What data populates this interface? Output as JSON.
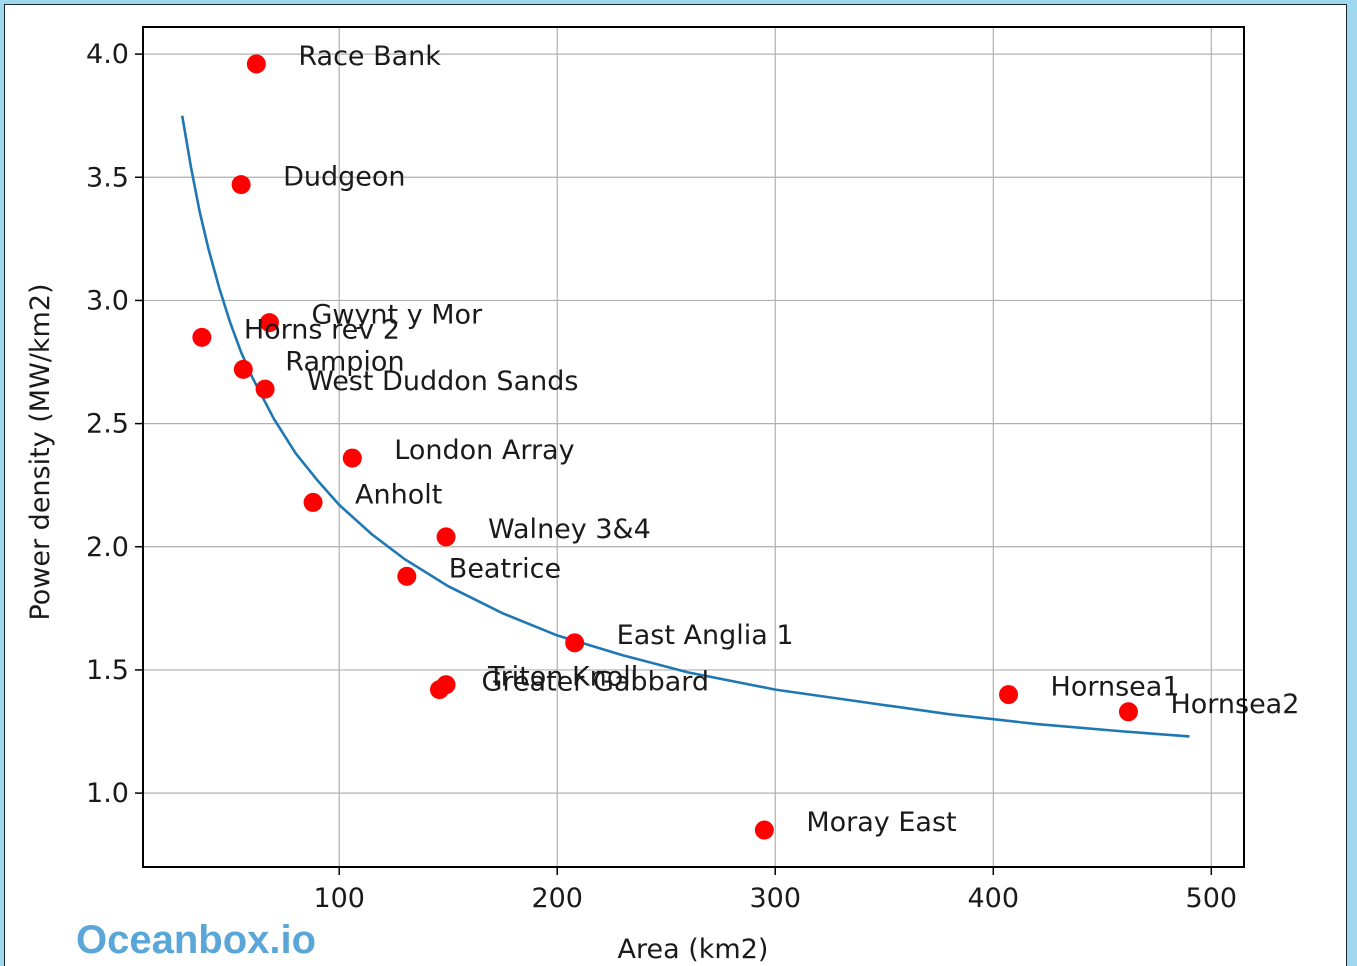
{
  "watermark": "Oceanbox.io",
  "colors": {
    "points": "#ff0000",
    "fit_line": "#1f77b4",
    "grid": "#b0b0b0",
    "axes": "#000000",
    "watermark": "#5aa6d9"
  },
  "chart_data": {
    "type": "scatter",
    "title": "",
    "xlabel": "Area (km2)",
    "ylabel": "Power density (MW/km2)",
    "xlim": [
      10,
      515
    ],
    "ylim": [
      0.7,
      4.11
    ],
    "xticks": [
      100,
      200,
      300,
      400,
      500
    ],
    "yticks": [
      1.0,
      1.5,
      2.0,
      2.5,
      3.0,
      3.5,
      4.0
    ],
    "xtick_labels": [
      "100",
      "200",
      "300",
      "400",
      "500"
    ],
    "ytick_labels": [
      "1.0",
      "1.5",
      "2.0",
      "2.5",
      "3.0",
      "3.5",
      "4.0"
    ],
    "grid": true,
    "legend": "none",
    "points": [
      {
        "name": "Race Bank",
        "x": 62,
        "y": 3.96
      },
      {
        "name": "Dudgeon",
        "x": 55,
        "y": 3.47
      },
      {
        "name": "Gwynt y Mor",
        "x": 68,
        "y": 2.91
      },
      {
        "name": "Horns rev 2",
        "x": 37,
        "y": 2.85
      },
      {
        "name": "Rampion",
        "x": 56,
        "y": 2.72
      },
      {
        "name": "West Duddon Sands",
        "x": 66,
        "y": 2.64
      },
      {
        "name": "London Array",
        "x": 106,
        "y": 2.36
      },
      {
        "name": "Anholt",
        "x": 88,
        "y": 2.18
      },
      {
        "name": "Walney 3&4",
        "x": 149,
        "y": 2.04
      },
      {
        "name": "Beatrice",
        "x": 131,
        "y": 1.88
      },
      {
        "name": "East Anglia 1",
        "x": 208,
        "y": 1.61
      },
      {
        "name": "Triton Knoll",
        "x": 149,
        "y": 1.44
      },
      {
        "name": "Greater Gabbard",
        "x": 146,
        "y": 1.42
      },
      {
        "name": "Hornsea1",
        "x": 407,
        "y": 1.4
      },
      {
        "name": "Hornsea2",
        "x": 462,
        "y": 1.33
      },
      {
        "name": "Moray East",
        "x": 295,
        "y": 0.85
      }
    ],
    "fit_curve": {
      "x": [
        28,
        32,
        36,
        40,
        45,
        50,
        55,
        60,
        70,
        80,
        90,
        100,
        115,
        130,
        150,
        175,
        200,
        230,
        260,
        300,
        340,
        380,
        420,
        460,
        490
      ],
      "y": [
        3.75,
        3.54,
        3.36,
        3.21,
        3.05,
        2.91,
        2.79,
        2.69,
        2.52,
        2.38,
        2.27,
        2.17,
        2.05,
        1.95,
        1.84,
        1.73,
        1.64,
        1.56,
        1.49,
        1.42,
        1.37,
        1.32,
        1.28,
        1.25,
        1.23
      ]
    }
  }
}
